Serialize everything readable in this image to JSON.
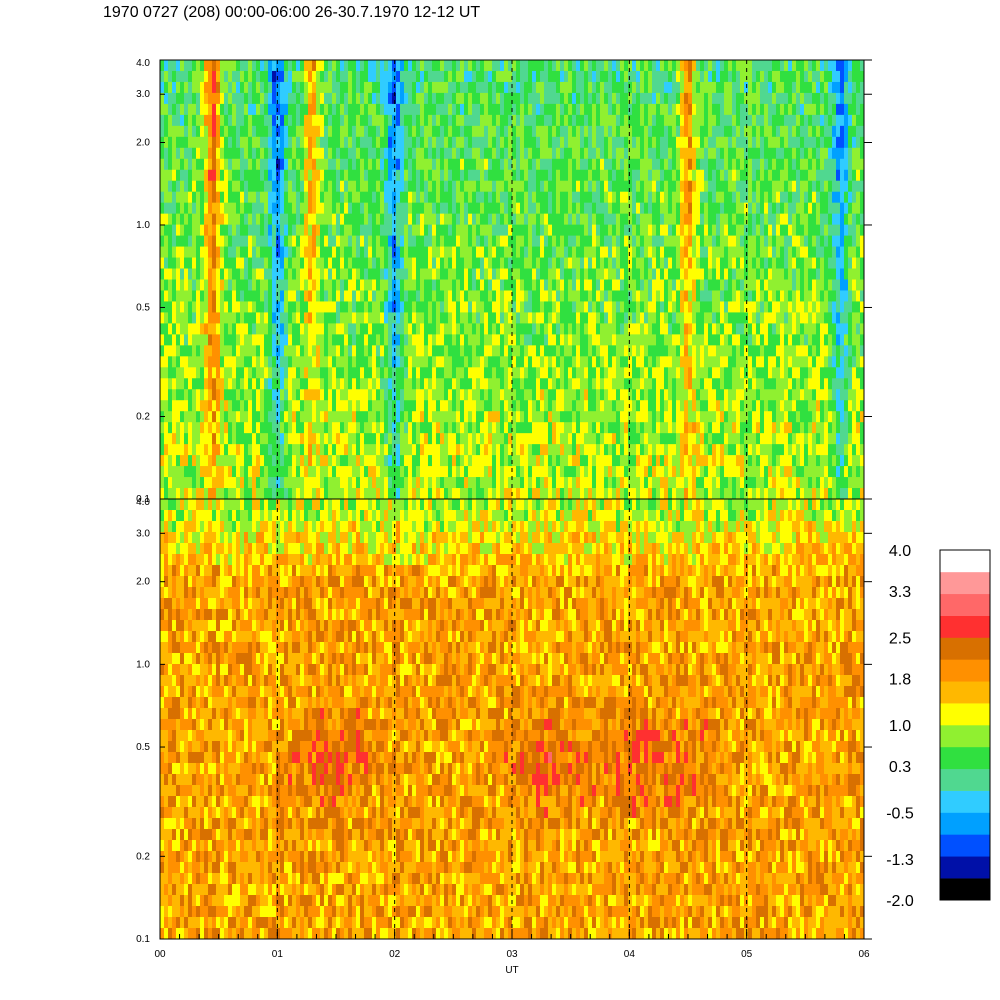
{
  "title": "1970 0727 (208) 00:00-06:00 26-30.7.1970  12-12 UT",
  "chart_data": {
    "type": "heatmap",
    "title": "1970 0727 (208) 00:00-06:00 26-30.7.1970  12-12 UT",
    "xlabel": "UT",
    "x_ticks": [
      "00",
      "01",
      "02",
      "03",
      "04",
      "05",
      "06"
    ],
    "xlim": [
      0,
      6
    ],
    "y_scale": "log",
    "ylim": [
      0.1,
      4.0
    ],
    "y_ticks": [
      "0.1",
      "0.2",
      "0.5",
      "1.0",
      "2.0",
      "3.0",
      "4.0"
    ],
    "y_tick_values": [
      0.1,
      0.2,
      0.5,
      1.0,
      2.0,
      3.0,
      4.0
    ],
    "grid": "vertical dashed lines at each hour",
    "panels": [
      {
        "name": "",
        "dominant_level": 0.3,
        "features": [
          {
            "x": 0.45,
            "level": 2.5
          },
          {
            "x": 1.3,
            "level": 1.8
          },
          {
            "x": 1.0,
            "level": -1.0
          },
          {
            "x": 2.0,
            "level": -1.0
          },
          {
            "x": 4.5,
            "level": 2.0
          },
          {
            "x": 5.8,
            "level": -0.8
          }
        ]
      },
      {
        "name": "",
        "dominant_level": 1.8,
        "features": [
          {
            "x": 1.5,
            "level": 2.5
          },
          {
            "x": 3.3,
            "level": 2.5
          },
          {
            "x": 4.1,
            "level": 2.5
          },
          {
            "x": 4.5,
            "level": 2.2
          }
        ]
      }
    ],
    "colorbar": {
      "labels": [
        "4.0",
        "3.3",
        "2.5",
        "1.8",
        "1.0",
        "0.3",
        "-0.5",
        "-1.3",
        "-2.0"
      ],
      "range": [
        -2.0,
        4.0
      ],
      "colors": [
        "#000000",
        "#0010a8",
        "#0050ff",
        "#00a0ff",
        "#30ccff",
        "#50d890",
        "#30e040",
        "#90f030",
        "#ffff00",
        "#ffb800",
        "#ff9000",
        "#d87000",
        "#ff3030",
        "#ff6868",
        "#ff9898",
        "#ffffff"
      ]
    }
  }
}
